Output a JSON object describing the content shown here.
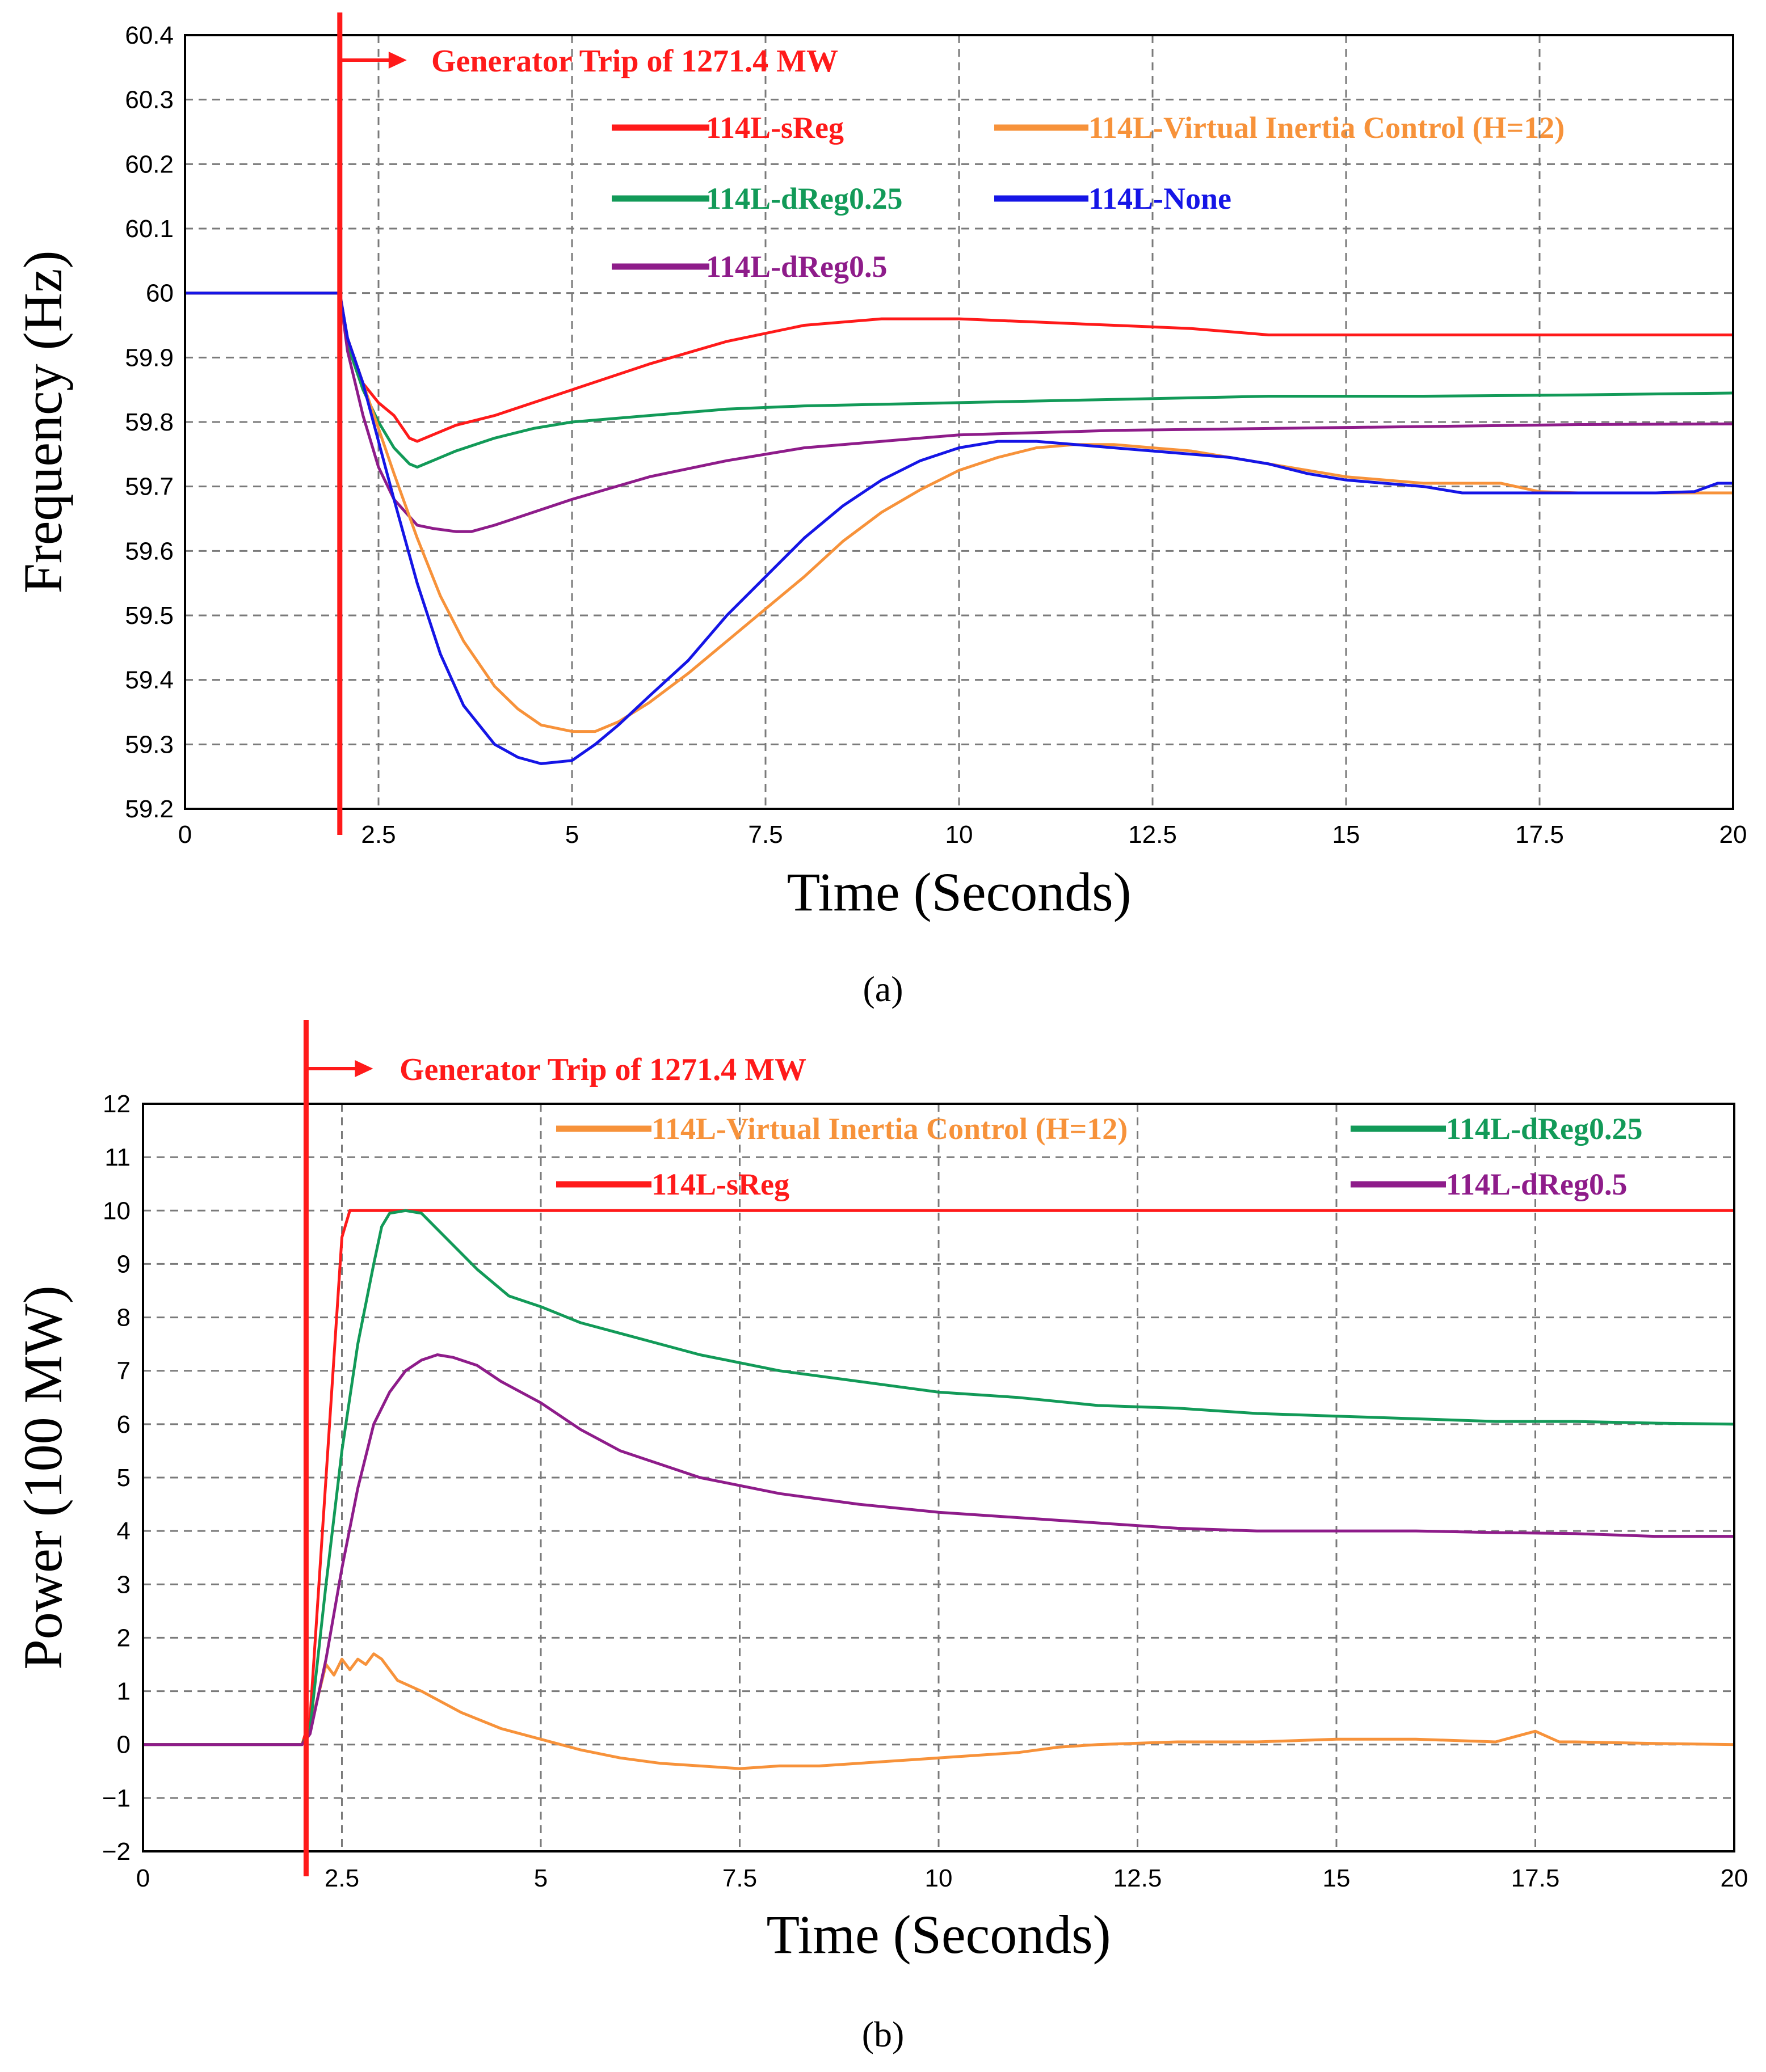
{
  "chart_data": [
    {
      "type": "line",
      "panel": "a",
      "caption": "(a)",
      "title": "",
      "xlabel": "Time (Seconds)",
      "ylabel": "Frequency (Hz)",
      "xlim": [
        0,
        20
      ],
      "ylim": [
        59.2,
        60.4
      ],
      "x_ticks": [
        0,
        2.5,
        5,
        7.5,
        10,
        12.5,
        15,
        17.5,
        20
      ],
      "y_ticks": [
        59.2,
        59.3,
        59.4,
        59.5,
        59.6,
        59.7,
        59.8,
        59.9,
        60,
        60.1,
        60.2,
        60.3,
        60.4
      ],
      "grid": true,
      "annotation": {
        "text": "Generator Trip of 1271.4 MW",
        "x": 2.0,
        "color": "#ff1a1a"
      },
      "series": [
        {
          "name": "114L-sReg",
          "color": "#ff1a1a",
          "x": [
            0,
            2.0,
            2.1,
            2.3,
            2.5,
            2.7,
            2.9,
            3.0,
            3.2,
            3.5,
            4.0,
            4.5,
            5.0,
            6.0,
            7.0,
            8.0,
            9.0,
            10.0,
            11.0,
            12.0,
            13.0,
            14.0,
            16.0,
            18.0,
            20.0
          ],
          "y": [
            60.0,
            60.0,
            59.93,
            59.86,
            59.83,
            59.81,
            59.775,
            59.77,
            59.78,
            59.795,
            59.81,
            59.83,
            59.85,
            59.89,
            59.925,
            59.95,
            59.96,
            59.96,
            59.955,
            59.95,
            59.945,
            59.935,
            59.935,
            59.935,
            59.935
          ]
        },
        {
          "name": "114L-dReg0.25",
          "color": "#129a58",
          "x": [
            0,
            2.0,
            2.1,
            2.3,
            2.5,
            2.7,
            2.9,
            3.0,
            3.2,
            3.5,
            4.0,
            4.5,
            5.0,
            6.0,
            7.0,
            8.0,
            10.0,
            12.0,
            14.0,
            16.0,
            18.0,
            20.0
          ],
          "y": [
            60.0,
            60.0,
            59.92,
            59.85,
            59.8,
            59.76,
            59.735,
            59.73,
            59.74,
            59.755,
            59.775,
            59.79,
            59.8,
            59.81,
            59.82,
            59.825,
            59.83,
            59.835,
            59.84,
            59.84,
            59.842,
            59.845
          ]
        },
        {
          "name": "114L-dReg0.5",
          "color": "#8e1c8a",
          "x": [
            0,
            2.0,
            2.1,
            2.3,
            2.5,
            2.7,
            3.0,
            3.2,
            3.5,
            3.7,
            4.0,
            4.5,
            5.0,
            6.0,
            7.0,
            8.0,
            9.0,
            10.0,
            12.0,
            14.0,
            16.0,
            18.0,
            20.0
          ],
          "y": [
            60.0,
            60.0,
            59.91,
            59.81,
            59.73,
            59.68,
            59.64,
            59.635,
            59.63,
            59.63,
            59.64,
            59.66,
            59.68,
            59.715,
            59.74,
            59.76,
            59.77,
            59.78,
            59.787,
            59.79,
            59.793,
            59.796,
            59.797
          ]
        },
        {
          "name": "114L-Virtual Inertia Control (H=12)",
          "color": "#f7923a",
          "x": [
            0,
            2.0,
            2.1,
            2.3,
            2.5,
            2.7,
            3.0,
            3.3,
            3.6,
            4.0,
            4.3,
            4.6,
            5.0,
            5.3,
            5.6,
            6.0,
            6.5,
            7.0,
            7.5,
            8.0,
            8.5,
            9.0,
            9.5,
            10.0,
            10.5,
            11.0,
            11.5,
            12.0,
            12.5,
            13.0,
            13.5,
            14.0,
            14.5,
            15.0,
            16.0,
            17.0,
            17.5,
            18.0,
            19.0,
            20.0
          ],
          "y": [
            60.0,
            60.0,
            59.93,
            59.86,
            59.79,
            59.72,
            59.62,
            59.53,
            59.46,
            59.39,
            59.355,
            59.33,
            59.32,
            59.32,
            59.335,
            59.365,
            59.41,
            59.46,
            59.51,
            59.56,
            59.615,
            59.66,
            59.695,
            59.725,
            59.745,
            59.76,
            59.765,
            59.765,
            59.76,
            59.755,
            59.745,
            59.735,
            59.725,
            59.715,
            59.705,
            59.705,
            59.692,
            59.69,
            59.69,
            59.69
          ]
        },
        {
          "name": "114L-None",
          "color": "#1515e6",
          "x": [
            0,
            2.0,
            2.1,
            2.3,
            2.5,
            2.7,
            3.0,
            3.3,
            3.6,
            4.0,
            4.3,
            4.6,
            5.0,
            5.3,
            5.6,
            6.0,
            6.5,
            7.0,
            7.5,
            8.0,
            8.5,
            9.0,
            9.5,
            10.0,
            10.5,
            11.0,
            11.5,
            12.0,
            12.5,
            13.0,
            13.5,
            14.0,
            14.5,
            15.0,
            15.5,
            16.0,
            16.5,
            17.0,
            18.0,
            19.0,
            19.5,
            19.8,
            20.0
          ],
          "y": [
            60.0,
            60.0,
            59.93,
            59.86,
            59.77,
            59.68,
            59.55,
            59.44,
            59.36,
            59.3,
            59.28,
            59.27,
            59.275,
            59.3,
            59.33,
            59.375,
            59.43,
            59.5,
            59.56,
            59.62,
            59.67,
            59.71,
            59.74,
            59.76,
            59.77,
            59.77,
            59.765,
            59.76,
            59.755,
            59.75,
            59.745,
            59.735,
            59.72,
            59.71,
            59.705,
            59.7,
            59.69,
            59.69,
            59.69,
            59.69,
            59.692,
            59.705,
            59.705
          ]
        }
      ]
    },
    {
      "type": "line",
      "panel": "b",
      "caption": "(b)",
      "title": "",
      "xlabel": "Time (Seconds)",
      "ylabel": "Power (100 MW)",
      "xlim": [
        0,
        20
      ],
      "ylim": [
        -2,
        12
      ],
      "x_ticks": [
        0,
        2.5,
        5,
        7.5,
        10,
        12.5,
        15,
        17.5,
        20
      ],
      "y_ticks": [
        -2,
        -1,
        0,
        1,
        2,
        3,
        4,
        5,
        6,
        7,
        8,
        9,
        10,
        11,
        12
      ],
      "y_tick_labels": [
        "−2",
        "−1",
        "0",
        "1",
        "2",
        "3",
        "4",
        "5",
        "6",
        "7",
        "8",
        "9",
        "10",
        "11",
        "12"
      ],
      "grid": true,
      "annotation": {
        "text": "Generator Trip of 1271.4 MW",
        "x": 2.05,
        "color": "#ff1a1a"
      },
      "series": [
        {
          "name": "114L-Virtual Inertia Control (H=12)",
          "color": "#f7923a",
          "x": [
            0,
            2.0,
            2.1,
            2.2,
            2.3,
            2.4,
            2.5,
            2.6,
            2.7,
            2.8,
            2.9,
            3.0,
            3.2,
            3.5,
            4.0,
            4.5,
            5.0,
            5.5,
            6.0,
            6.5,
            7.0,
            7.5,
            8.0,
            8.5,
            9.0,
            9.5,
            10.0,
            10.5,
            11.0,
            11.5,
            12.0,
            13.0,
            14.0,
            15.0,
            16.0,
            17.0,
            17.5,
            17.8,
            18.0,
            19.0,
            20.0
          ],
          "y": [
            0,
            0,
            0.3,
            0.9,
            1.5,
            1.3,
            1.6,
            1.4,
            1.6,
            1.5,
            1.7,
            1.6,
            1.2,
            1.0,
            0.6,
            0.3,
            0.1,
            -0.1,
            -0.25,
            -0.35,
            -0.4,
            -0.45,
            -0.4,
            -0.4,
            -0.35,
            -0.3,
            -0.25,
            -0.2,
            -0.15,
            -0.05,
            0.0,
            0.05,
            0.05,
            0.1,
            0.1,
            0.05,
            0.25,
            0.05,
            0.05,
            0.02,
            0.0
          ]
        },
        {
          "name": "114L-sReg",
          "color": "#ff1a1a",
          "x": [
            0,
            2.0,
            2.1,
            2.3,
            2.5,
            2.6,
            3.0,
            5.0,
            10.0,
            15.0,
            20.0
          ],
          "y": [
            0,
            0,
            0.5,
            5.0,
            9.5,
            10.0,
            10.0,
            10.0,
            10.0,
            10.0,
            10.0
          ]
        },
        {
          "name": "114L-dReg0.25",
          "color": "#129a58",
          "x": [
            0,
            2.0,
            2.1,
            2.3,
            2.5,
            2.7,
            2.9,
            3.0,
            3.1,
            3.3,
            3.5,
            3.8,
            4.2,
            4.6,
            5.0,
            5.5,
            6.0,
            7.0,
            8.0,
            9.0,
            10.0,
            11.0,
            12.0,
            13.0,
            14.0,
            15.0,
            16.0,
            17.0,
            18.0,
            19.0,
            20.0
          ],
          "y": [
            0,
            0,
            0.3,
            3.0,
            5.5,
            7.5,
            9.0,
            9.7,
            9.95,
            10.0,
            9.95,
            9.5,
            8.9,
            8.4,
            8.2,
            7.9,
            7.7,
            7.3,
            7.0,
            6.8,
            6.6,
            6.5,
            6.35,
            6.3,
            6.2,
            6.15,
            6.1,
            6.05,
            6.05,
            6.02,
            6.0
          ]
        },
        {
          "name": "114L-dReg0.5",
          "color": "#8e1c8a",
          "x": [
            0,
            2.0,
            2.1,
            2.3,
            2.5,
            2.7,
            2.9,
            3.1,
            3.3,
            3.5,
            3.7,
            3.9,
            4.2,
            4.5,
            5.0,
            5.5,
            6.0,
            7.0,
            8.0,
            9.0,
            10.0,
            11.0,
            12.0,
            13.0,
            14.0,
            15.0,
            16.0,
            17.0,
            18.0,
            19.0,
            20.0
          ],
          "y": [
            0,
            0,
            0.2,
            1.6,
            3.3,
            4.8,
            6.0,
            6.6,
            7.0,
            7.2,
            7.3,
            7.25,
            7.1,
            6.8,
            6.4,
            5.9,
            5.5,
            5.0,
            4.7,
            4.5,
            4.35,
            4.25,
            4.15,
            4.05,
            4.0,
            4.0,
            4.0,
            3.97,
            3.95,
            3.9,
            3.9
          ]
        }
      ]
    }
  ]
}
